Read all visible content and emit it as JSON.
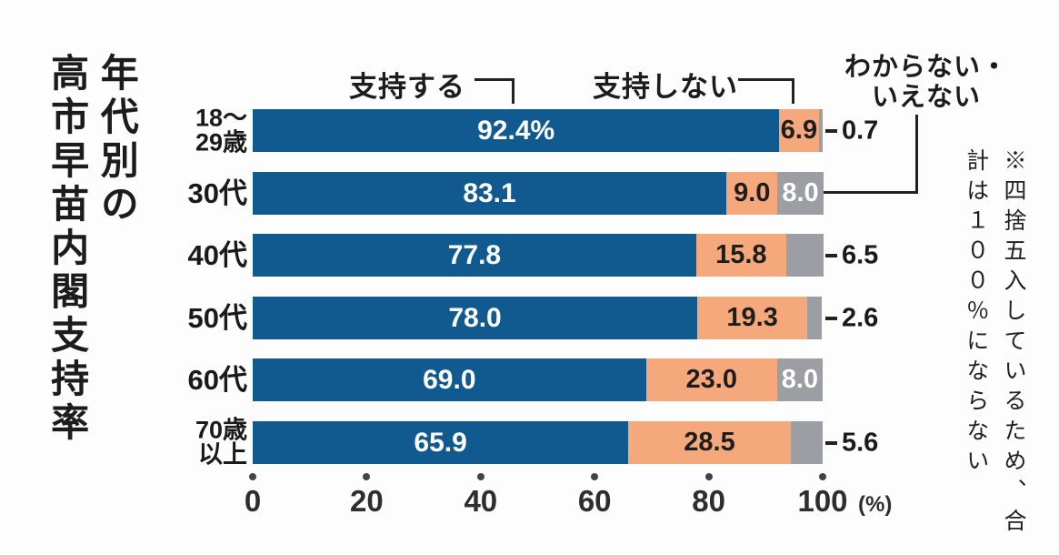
{
  "title_lines": [
    "年代別の",
    "高市早苗内閣支持率"
  ],
  "legend": {
    "support": "支持する",
    "not_support": "支持しない",
    "unknown_line1": "わからない・",
    "unknown_line2": "いえない"
  },
  "footnote": "※四捨五入しているため、合計は１００％にならない",
  "axis": {
    "ticks": [
      0,
      20,
      40,
      60,
      80,
      100
    ],
    "unit": "(%)"
  },
  "colors": {
    "support": "#115a8f",
    "not_support": "#f6a87d",
    "unknown": "#9b9ea3"
  },
  "chart_data": {
    "type": "bar",
    "orientation": "horizontal-stacked",
    "title": "年代別の高市早苗内閣支持率",
    "categories": [
      "18〜29歳",
      "30代",
      "40代",
      "50代",
      "60代",
      "70歳以上"
    ],
    "category_label_lines": [
      [
        "18〜",
        "29歳"
      ],
      [
        "30代"
      ],
      [
        "40代"
      ],
      [
        "50代"
      ],
      [
        "60代"
      ],
      [
        "70歳",
        "以上"
      ]
    ],
    "series": [
      {
        "name": "支持する",
        "values": [
          92.4,
          83.1,
          77.8,
          78.0,
          69.0,
          65.9
        ]
      },
      {
        "name": "支持しない",
        "values": [
          6.9,
          9.0,
          15.8,
          19.3,
          23.0,
          28.5
        ]
      },
      {
        "name": "わからない・いえない",
        "values": [
          0.7,
          8.0,
          6.5,
          2.6,
          8.0,
          5.6
        ]
      }
    ],
    "value_labels": {
      "support": [
        "92.4%",
        "83.1",
        "77.8",
        "78.0",
        "69.0",
        "65.9"
      ],
      "not_support": [
        "6.9",
        "9.0",
        "15.8",
        "19.3",
        "23.0",
        "28.5"
      ],
      "unknown": [
        "0.7",
        "8.0",
        "6.5",
        "2.6",
        "8.0",
        "5.6"
      ],
      "unknown_inside": [
        false,
        true,
        false,
        false,
        true,
        false
      ]
    },
    "xlim": [
      0,
      100
    ],
    "xlabel": "(%)",
    "grid": false,
    "legend_position": "top"
  }
}
